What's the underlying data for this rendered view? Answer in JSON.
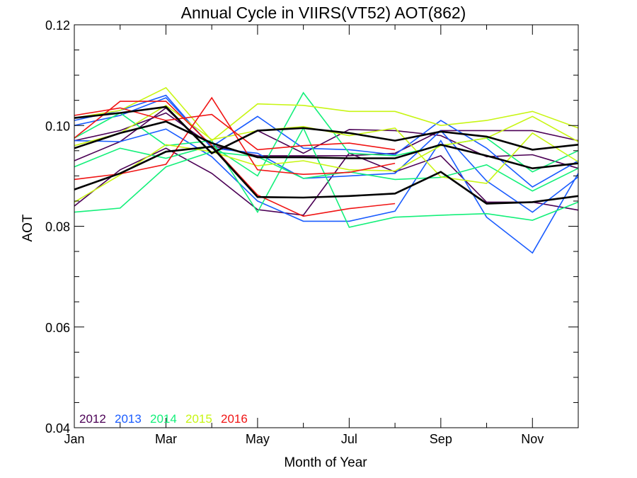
{
  "chart_data": {
    "type": "line",
    "title": "Annual Cycle in VIIRS(VT52) AOT(862)",
    "xlabel": "Month of Year",
    "ylabel": "AOT",
    "xlim": [
      1,
      12
    ],
    "ylim": [
      0.04,
      0.12
    ],
    "x_ticks": [
      1,
      3,
      5,
      7,
      9,
      11
    ],
    "x_tick_labels": [
      "Jan",
      "Mar",
      "May",
      "Jul",
      "Sep",
      "Nov"
    ],
    "y_ticks": [
      0.04,
      0.06,
      0.08,
      0.1,
      0.12
    ],
    "y_tick_labels": [
      "0.04",
      "0.06",
      "0.08",
      "0.10",
      "0.12"
    ],
    "legend": {
      "placement": "bottom-left",
      "entries": [
        {
          "label": "2012",
          "color": "#4b0055"
        },
        {
          "label": "2013",
          "color": "#1a5cff"
        },
        {
          "label": "2014",
          "color": "#13f07a"
        },
        {
          "label": "2015",
          "color": "#c8f514"
        },
        {
          "label": "2016",
          "color": "#f01414"
        }
      ]
    },
    "series": [
      {
        "color": "#4b0055",
        "width": 1.6,
        "x": [
          1,
          2,
          3,
          4,
          5,
          6,
          7,
          8,
          9,
          10,
          11,
          12
        ],
        "y": [
          0.093,
          0.0968,
          0.1035,
          0.0945,
          0.099,
          0.0945,
          0.0992,
          0.099,
          0.098,
          0.0938,
          0.0942,
          0.0915
        ]
      },
      {
        "color": "#4b0055",
        "width": 1.6,
        "x": [
          1,
          2,
          3,
          4,
          5,
          6,
          7,
          8,
          9,
          10,
          11,
          12
        ],
        "y": [
          0.084,
          0.0912,
          0.0955,
          0.0905,
          0.0833,
          0.0822,
          0.0945,
          0.0908,
          0.094,
          0.0848,
          0.0848,
          0.0832
        ]
      },
      {
        "color": "#4b0055",
        "width": 1.6,
        "x": [
          1,
          2,
          3,
          4,
          5,
          6,
          7,
          8,
          9,
          10,
          11,
          12
        ],
        "y": [
          0.097,
          0.099,
          0.1025,
          0.096,
          0.094,
          0.094,
          0.094,
          0.0945,
          0.099,
          0.099,
          0.099,
          0.097
        ]
      },
      {
        "color": "#1a5cff",
        "width": 1.6,
        "x": [
          1,
          2,
          3,
          4,
          5,
          6,
          7,
          8,
          9,
          10,
          11,
          12
        ],
        "y": [
          0.1,
          0.102,
          0.1055,
          0.0958,
          0.1018,
          0.0955,
          0.0952,
          0.0942,
          0.101,
          0.0955,
          0.0878,
          0.093
        ]
      },
      {
        "color": "#1a5cff",
        "width": 1.6,
        "x": [
          1,
          2,
          3,
          4,
          5,
          6,
          7,
          8,
          9,
          10,
          11,
          12
        ],
        "y": [
          0.097,
          0.0968,
          0.0993,
          0.0938,
          0.085,
          0.081,
          0.081,
          0.083,
          0.097,
          0.0818,
          0.0747,
          0.0905
        ]
      },
      {
        "color": "#1a5cff",
        "width": 1.6,
        "x": [
          1,
          2,
          3,
          4,
          5,
          6,
          7,
          8,
          9,
          10,
          11,
          12
        ],
        "y": [
          0.101,
          0.103,
          0.106,
          0.0955,
          0.0945,
          0.0895,
          0.09,
          0.0905,
          0.099,
          0.089,
          0.0828,
          0.0898
        ]
      },
      {
        "color": "#13f07a",
        "width": 1.6,
        "x": [
          1,
          2,
          3,
          4,
          5,
          6,
          7,
          8,
          9,
          10,
          11,
          12
        ],
        "y": [
          0.0975,
          0.1025,
          0.096,
          0.097,
          0.0828,
          0.0995,
          0.0798,
          0.0818,
          0.0822,
          0.0825,
          0.0812,
          0.0848
        ]
      },
      {
        "color": "#13f07a",
        "width": 1.6,
        "x": [
          1,
          2,
          3,
          4,
          5,
          6,
          7,
          8,
          9,
          10,
          11,
          12
        ],
        "y": [
          0.0918,
          0.0955,
          0.0935,
          0.096,
          0.09,
          0.1065,
          0.0945,
          0.094,
          0.096,
          0.0975,
          0.0908,
          0.095
        ]
      },
      {
        "color": "#13f07a",
        "width": 1.6,
        "x": [
          1,
          2,
          3,
          4,
          5,
          6,
          7,
          8,
          9,
          10,
          11,
          12
        ],
        "y": [
          0.0828,
          0.0836,
          0.0918,
          0.0948,
          0.0938,
          0.0895,
          0.0908,
          0.0893,
          0.0897,
          0.0922,
          0.087,
          0.0915
        ]
      },
      {
        "color": "#c8f514",
        "width": 1.6,
        "x": [
          1,
          2,
          3,
          4,
          5,
          6,
          7,
          8,
          9,
          10,
          11,
          12
        ],
        "y": [
          0.1015,
          0.103,
          0.1075,
          0.097,
          0.1043,
          0.104,
          0.1028,
          0.1028,
          0.1,
          0.101,
          0.1028,
          0.0995
        ]
      },
      {
        "color": "#c8f514",
        "width": 1.6,
        "x": [
          1,
          2,
          3,
          4,
          5,
          6,
          7,
          8,
          9,
          10,
          11,
          12
        ],
        "y": [
          0.0848,
          0.0902,
          0.0962,
          0.0948,
          0.092,
          0.093,
          0.0912,
          0.091,
          0.096,
          0.0975,
          0.1018,
          0.0968
        ]
      },
      {
        "color": "#c8f514",
        "width": 1.6,
        "x": [
          1,
          2,
          3,
          4,
          5,
          6,
          7,
          8,
          9,
          10,
          11,
          12
        ],
        "y": [
          0.096,
          0.0985,
          0.104,
          0.0972,
          0.099,
          0.0998,
          0.098,
          0.0995,
          0.0898,
          0.0885,
          0.0985,
          0.0928
        ]
      },
      {
        "color": "#f01414",
        "width": 1.6,
        "x": [
          1,
          2,
          3,
          4,
          5,
          6,
          7,
          8
        ],
        "y": [
          0.0975,
          0.1048,
          0.1048,
          0.096,
          0.0862,
          0.082,
          0.0835,
          0.0845
        ]
      },
      {
        "color": "#f01414",
        "width": 1.6,
        "x": [
          1,
          2,
          3,
          4,
          5,
          6,
          7,
          8
        ],
        "y": [
          0.0893,
          0.0904,
          0.0923,
          0.1055,
          0.0912,
          0.0903,
          0.0907,
          0.0925
        ]
      },
      {
        "color": "#f01414",
        "width": 1.6,
        "x": [
          1,
          2,
          3,
          4,
          5,
          6,
          7,
          8
        ],
        "y": [
          0.102,
          0.1035,
          0.101,
          0.1022,
          0.0952,
          0.096,
          0.0965,
          0.0952
        ]
      },
      {
        "color": "#000000",
        "width": 2.6,
        "x": [
          1,
          2,
          3,
          4,
          5,
          6,
          7,
          8,
          9,
          10,
          11,
          12
        ],
        "y": [
          0.0955,
          0.0985,
          0.1008,
          0.0965,
          0.0937,
          0.0937,
          0.0935,
          0.0935,
          0.0962,
          0.094,
          0.0915,
          0.0925
        ]
      },
      {
        "color": "#000000",
        "width": 2.6,
        "x": [
          1,
          2,
          3,
          4,
          5,
          6,
          7,
          8,
          9,
          10,
          11,
          12
        ],
        "y": [
          0.0873,
          0.0905,
          0.0948,
          0.0958,
          0.0858,
          0.0857,
          0.086,
          0.0865,
          0.0908,
          0.0845,
          0.0848,
          0.086
        ]
      },
      {
        "color": "#000000",
        "width": 2.6,
        "x": [
          1,
          2,
          3,
          4,
          5,
          6,
          7,
          8,
          9,
          10,
          11,
          12
        ],
        "y": [
          0.1015,
          0.1025,
          0.1037,
          0.0945,
          0.099,
          0.0995,
          0.0985,
          0.097,
          0.0988,
          0.0978,
          0.0952,
          0.0962
        ]
      }
    ]
  }
}
